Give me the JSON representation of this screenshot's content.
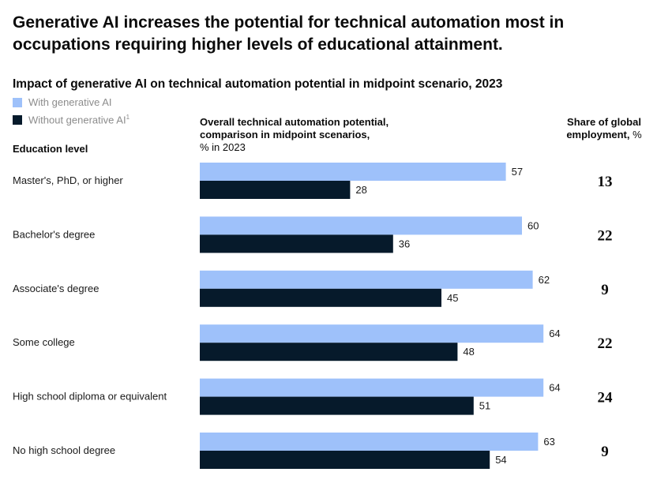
{
  "headline": "Generative AI increases the potential for technical automation most in occupations requiring higher levels of educational attainment.",
  "legend": {
    "with_label": "With generative AI",
    "without_label": "Without generative AI",
    "without_footnote": "1"
  },
  "column_header": {
    "line1": "Overall technical automation potential,",
    "line2": "comparison in midpoint scenarios,",
    "line3": "% in 2023"
  },
  "share_header": {
    "line1": "Share of global",
    "line2": "employment,",
    "unit": "%"
  },
  "colors": {
    "with": "#9EC1FA",
    "without": "#061A2B"
  },
  "chart_data": {
    "type": "bar",
    "orientation": "horizontal",
    "title": "Impact of generative AI on technical automation potential in midpoint scenario, 2023",
    "category_axis_label": "Education level",
    "categories": [
      "Master's, PhD, or higher",
      "Bachelor's degree",
      "Associate's degree",
      "Some college",
      "High school diploma or equivalent",
      "No high school degree"
    ],
    "series": [
      {
        "name": "With generative AI",
        "values": [
          57,
          60,
          62,
          64,
          64,
          63
        ]
      },
      {
        "name": "Without generative AI",
        "values": [
          28,
          36,
          45,
          48,
          51,
          54
        ]
      }
    ],
    "share_of_global_employment": [
      13,
      22,
      9,
      22,
      24,
      9
    ],
    "xlim": [
      0,
      64
    ],
    "grid": false,
    "legend_position": "top-left"
  }
}
